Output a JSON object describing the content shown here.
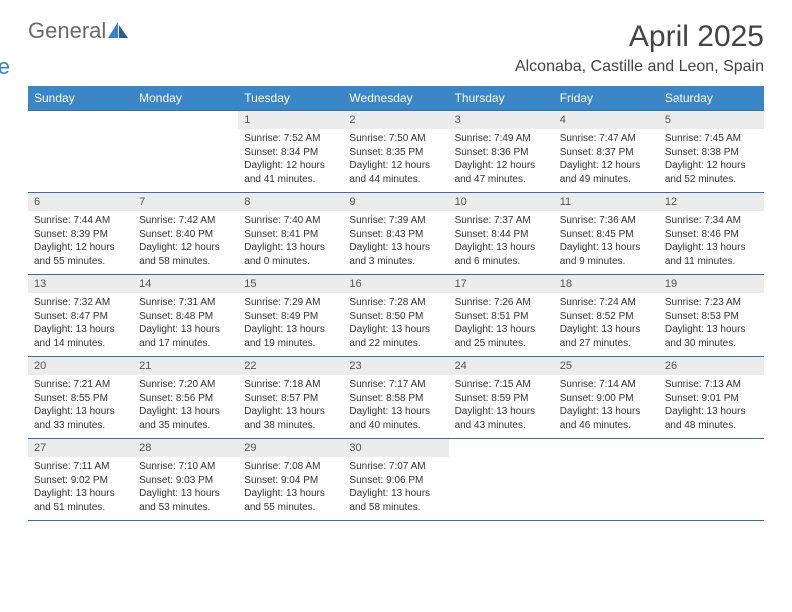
{
  "brand": {
    "part1": "General",
    "part2": "Blue"
  },
  "title": "April 2025",
  "location": "Alconaba, Castille and Leon, Spain",
  "colors": {
    "header_bg": "#3b86c7",
    "header_text": "#ffffff",
    "daynum_bg": "#ececec",
    "rule": "#3b6fa0",
    "brand_gray": "#6a6a6a",
    "brand_blue": "#3b7fc4"
  },
  "weekdays": [
    "Sunday",
    "Monday",
    "Tuesday",
    "Wednesday",
    "Thursday",
    "Friday",
    "Saturday"
  ],
  "weeks": [
    [
      null,
      null,
      {
        "n": "1",
        "sr": "Sunrise: 7:52 AM",
        "ss": "Sunset: 8:34 PM",
        "dl": "Daylight: 12 hours and 41 minutes."
      },
      {
        "n": "2",
        "sr": "Sunrise: 7:50 AM",
        "ss": "Sunset: 8:35 PM",
        "dl": "Daylight: 12 hours and 44 minutes."
      },
      {
        "n": "3",
        "sr": "Sunrise: 7:49 AM",
        "ss": "Sunset: 8:36 PM",
        "dl": "Daylight: 12 hours and 47 minutes."
      },
      {
        "n": "4",
        "sr": "Sunrise: 7:47 AM",
        "ss": "Sunset: 8:37 PM",
        "dl": "Daylight: 12 hours and 49 minutes."
      },
      {
        "n": "5",
        "sr": "Sunrise: 7:45 AM",
        "ss": "Sunset: 8:38 PM",
        "dl": "Daylight: 12 hours and 52 minutes."
      }
    ],
    [
      {
        "n": "6",
        "sr": "Sunrise: 7:44 AM",
        "ss": "Sunset: 8:39 PM",
        "dl": "Daylight: 12 hours and 55 minutes."
      },
      {
        "n": "7",
        "sr": "Sunrise: 7:42 AM",
        "ss": "Sunset: 8:40 PM",
        "dl": "Daylight: 12 hours and 58 minutes."
      },
      {
        "n": "8",
        "sr": "Sunrise: 7:40 AM",
        "ss": "Sunset: 8:41 PM",
        "dl": "Daylight: 13 hours and 0 minutes."
      },
      {
        "n": "9",
        "sr": "Sunrise: 7:39 AM",
        "ss": "Sunset: 8:43 PM",
        "dl": "Daylight: 13 hours and 3 minutes."
      },
      {
        "n": "10",
        "sr": "Sunrise: 7:37 AM",
        "ss": "Sunset: 8:44 PM",
        "dl": "Daylight: 13 hours and 6 minutes."
      },
      {
        "n": "11",
        "sr": "Sunrise: 7:36 AM",
        "ss": "Sunset: 8:45 PM",
        "dl": "Daylight: 13 hours and 9 minutes."
      },
      {
        "n": "12",
        "sr": "Sunrise: 7:34 AM",
        "ss": "Sunset: 8:46 PM",
        "dl": "Daylight: 13 hours and 11 minutes."
      }
    ],
    [
      {
        "n": "13",
        "sr": "Sunrise: 7:32 AM",
        "ss": "Sunset: 8:47 PM",
        "dl": "Daylight: 13 hours and 14 minutes."
      },
      {
        "n": "14",
        "sr": "Sunrise: 7:31 AM",
        "ss": "Sunset: 8:48 PM",
        "dl": "Daylight: 13 hours and 17 minutes."
      },
      {
        "n": "15",
        "sr": "Sunrise: 7:29 AM",
        "ss": "Sunset: 8:49 PM",
        "dl": "Daylight: 13 hours and 19 minutes."
      },
      {
        "n": "16",
        "sr": "Sunrise: 7:28 AM",
        "ss": "Sunset: 8:50 PM",
        "dl": "Daylight: 13 hours and 22 minutes."
      },
      {
        "n": "17",
        "sr": "Sunrise: 7:26 AM",
        "ss": "Sunset: 8:51 PM",
        "dl": "Daylight: 13 hours and 25 minutes."
      },
      {
        "n": "18",
        "sr": "Sunrise: 7:24 AM",
        "ss": "Sunset: 8:52 PM",
        "dl": "Daylight: 13 hours and 27 minutes."
      },
      {
        "n": "19",
        "sr": "Sunrise: 7:23 AM",
        "ss": "Sunset: 8:53 PM",
        "dl": "Daylight: 13 hours and 30 minutes."
      }
    ],
    [
      {
        "n": "20",
        "sr": "Sunrise: 7:21 AM",
        "ss": "Sunset: 8:55 PM",
        "dl": "Daylight: 13 hours and 33 minutes."
      },
      {
        "n": "21",
        "sr": "Sunrise: 7:20 AM",
        "ss": "Sunset: 8:56 PM",
        "dl": "Daylight: 13 hours and 35 minutes."
      },
      {
        "n": "22",
        "sr": "Sunrise: 7:18 AM",
        "ss": "Sunset: 8:57 PM",
        "dl": "Daylight: 13 hours and 38 minutes."
      },
      {
        "n": "23",
        "sr": "Sunrise: 7:17 AM",
        "ss": "Sunset: 8:58 PM",
        "dl": "Daylight: 13 hours and 40 minutes."
      },
      {
        "n": "24",
        "sr": "Sunrise: 7:15 AM",
        "ss": "Sunset: 8:59 PM",
        "dl": "Daylight: 13 hours and 43 minutes."
      },
      {
        "n": "25",
        "sr": "Sunrise: 7:14 AM",
        "ss": "Sunset: 9:00 PM",
        "dl": "Daylight: 13 hours and 46 minutes."
      },
      {
        "n": "26",
        "sr": "Sunrise: 7:13 AM",
        "ss": "Sunset: 9:01 PM",
        "dl": "Daylight: 13 hours and 48 minutes."
      }
    ],
    [
      {
        "n": "27",
        "sr": "Sunrise: 7:11 AM",
        "ss": "Sunset: 9:02 PM",
        "dl": "Daylight: 13 hours and 51 minutes."
      },
      {
        "n": "28",
        "sr": "Sunrise: 7:10 AM",
        "ss": "Sunset: 9:03 PM",
        "dl": "Daylight: 13 hours and 53 minutes."
      },
      {
        "n": "29",
        "sr": "Sunrise: 7:08 AM",
        "ss": "Sunset: 9:04 PM",
        "dl": "Daylight: 13 hours and 55 minutes."
      },
      {
        "n": "30",
        "sr": "Sunrise: 7:07 AM",
        "ss": "Sunset: 9:06 PM",
        "dl": "Daylight: 13 hours and 58 minutes."
      },
      null,
      null,
      null
    ]
  ]
}
